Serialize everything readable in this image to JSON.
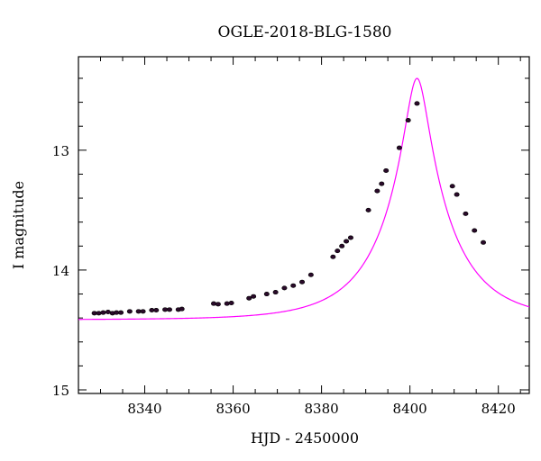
{
  "chart_data": {
    "type": "scatter",
    "title": "OGLE-2018-BLG-1580",
    "xlabel": "HJD - 2450000",
    "ylabel": "I magnitude",
    "xlim": [
      8325,
      8427
    ],
    "ylim": [
      15.03,
      12.22
    ],
    "y_inverted": true,
    "x_ticks_major": [
      8340,
      8360,
      8380,
      8400,
      8420
    ],
    "x_ticks_minor_step": 5,
    "y_ticks_major": [
      13,
      14,
      15
    ],
    "y_ticks_minor_step": 0.2,
    "grid": false,
    "legend": "none",
    "model_color": "#ff00ff",
    "point_color": "#2a0a2a",
    "model": {
      "baseline_mag": 14.415,
      "t0": 8401.6,
      "peak_mag": 12.4,
      "type": "point-lens"
    },
    "series": [
      {
        "x": [
          8328.6,
          8329.6,
          8330.6,
          8331.7,
          8332.7,
          8333.6,
          8334.6,
          8336.6,
          8338.6,
          8339.6,
          8341.6,
          8342.6,
          8344.6,
          8345.6,
          8347.6,
          8348.4,
          8355.6,
          8356.6,
          8358.6,
          8359.6,
          8363.6,
          8364.6,
          8367.6,
          8369.6,
          8371.6,
          8373.6,
          8375.6,
          8377.6,
          8382.6,
          8383.6,
          8384.6,
          8385.6,
          8386.6,
          8390.6,
          8392.6,
          8393.6,
          8394.6,
          8397.6,
          8399.6,
          8401.6,
          8409.6,
          8410.6,
          8412.6,
          8414.6,
          8416.6
        ],
        "y": [
          14.36,
          14.36,
          14.355,
          14.35,
          14.36,
          14.355,
          14.355,
          14.345,
          14.345,
          14.345,
          14.335,
          14.335,
          14.33,
          14.33,
          14.33,
          14.325,
          14.28,
          14.285,
          14.28,
          14.275,
          14.235,
          14.22,
          14.2,
          14.185,
          14.15,
          14.13,
          14.1,
          14.04,
          13.89,
          13.84,
          13.8,
          13.76,
          13.73,
          13.5,
          13.34,
          13.28,
          13.17,
          12.98,
          12.75,
          12.61,
          13.3,
          13.37,
          13.53,
          13.67,
          13.77
        ]
      }
    ]
  }
}
